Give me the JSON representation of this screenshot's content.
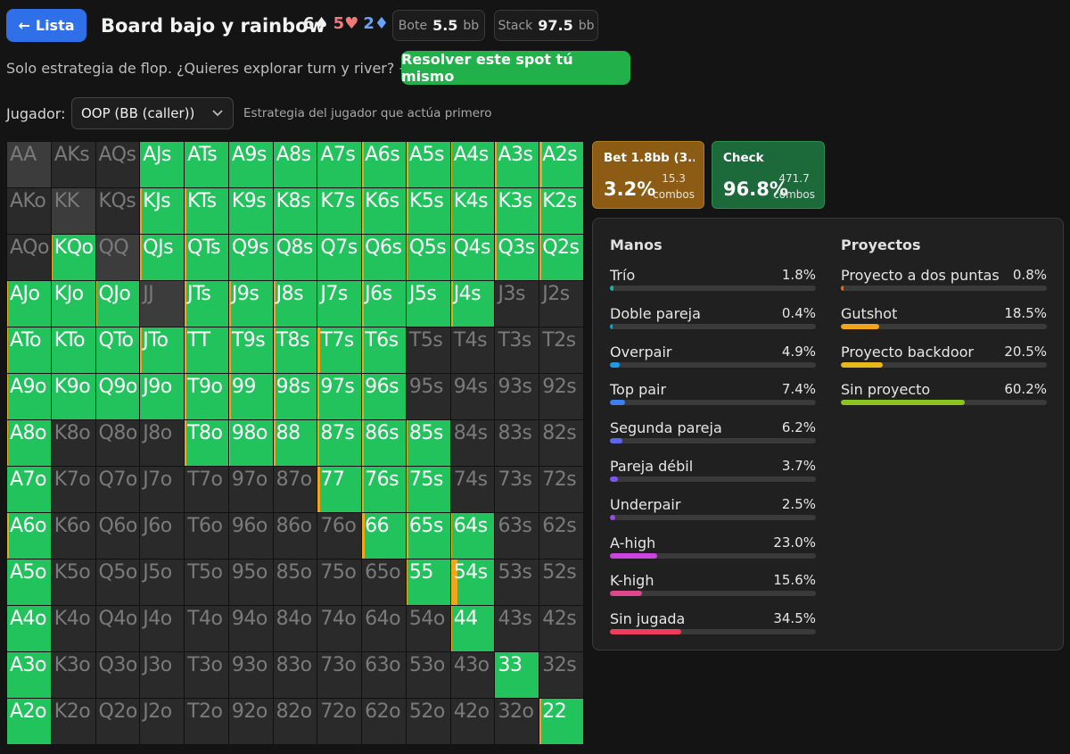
{
  "header": {
    "back_label": "Lista",
    "title": "Board bajo y rainbow",
    "board": [
      {
        "rank": "6",
        "suit": "♠",
        "cls": "card-s"
      },
      {
        "rank": "5",
        "suit": "♥",
        "cls": "card-h"
      },
      {
        "rank": "2",
        "suit": "♦",
        "cls": "card-d"
      }
    ],
    "pot_label": "Bote",
    "pot_value": "5.5",
    "pot_unit": "bb",
    "stack_label": "Stack",
    "stack_value": "97.5",
    "stack_unit": "bb"
  },
  "info_text": "Solo estrategia de flop. ¿Quieres explorar turn y river? →",
  "solve_button": "Resolver este spot tú mismo",
  "player": {
    "label": "Jugador:",
    "selected": "OOP (BB (caller))",
    "description": "Estrategia del jugador que actúa primero"
  },
  "actions": [
    {
      "name": "Bet 1.8bb (3...",
      "pct": "3.2%",
      "combos_value": "15.3",
      "combos_label": "combos",
      "color": "#8c5c15"
    },
    {
      "name": "Check",
      "pct": "96.8%",
      "combos_value": "471.7",
      "combos_label": "combos",
      "color": "#1c6a3a"
    }
  ],
  "matrix": {
    "colors": {
      "check": "#22c35d",
      "bet": "#f1a51d",
      "empty": "#2a2a2a"
    },
    "rows": [
      [
        [
          "AA",
          -1
        ],
        [
          "AKs",
          -1
        ],
        [
          "AQs",
          -1
        ],
        [
          "AJs",
          0
        ],
        [
          "ATs",
          0
        ],
        [
          "A9s",
          0
        ],
        [
          "A8s",
          0
        ],
        [
          "A7s",
          0
        ],
        [
          "A6s",
          3
        ],
        [
          "A5s",
          4
        ],
        [
          "A4s",
          3
        ],
        [
          "A3s",
          3
        ],
        [
          "A2s",
          5
        ]
      ],
      [
        [
          "AKo",
          -1
        ],
        [
          "KK",
          -1
        ],
        [
          "KQs",
          -1
        ],
        [
          "KJs",
          3
        ],
        [
          "KTs",
          3
        ],
        [
          "K9s",
          0
        ],
        [
          "K8s",
          0
        ],
        [
          "K7s",
          0
        ],
        [
          "K6s",
          4
        ],
        [
          "K5s",
          4
        ],
        [
          "K4s",
          3
        ],
        [
          "K3s",
          3
        ],
        [
          "K2s",
          3
        ]
      ],
      [
        [
          "AQo",
          -1
        ],
        [
          "KQo",
          3
        ],
        [
          "QQ",
          -1
        ],
        [
          "QJs",
          3
        ],
        [
          "QTs",
          3
        ],
        [
          "Q9s",
          0
        ],
        [
          "Q8s",
          0
        ],
        [
          "Q7s",
          0
        ],
        [
          "Q6s",
          4
        ],
        [
          "Q5s",
          3
        ],
        [
          "Q4s",
          3
        ],
        [
          "Q3s",
          3
        ],
        [
          "Q2s",
          3
        ]
      ],
      [
        [
          "AJo",
          3
        ],
        [
          "KJo",
          0
        ],
        [
          "QJo",
          3
        ],
        [
          "JJ",
          -1
        ],
        [
          "JTs",
          3
        ],
        [
          "J9s",
          5
        ],
        [
          "J8s",
          4
        ],
        [
          "J7s",
          0
        ],
        [
          "J6s",
          3
        ],
        [
          "J5s",
          0
        ],
        [
          "J4s",
          5
        ],
        [
          "J3s",
          -1
        ],
        [
          "J2s",
          -1
        ]
      ],
      [
        [
          "ATo",
          3
        ],
        [
          "KTo",
          0
        ],
        [
          "QTo",
          0
        ],
        [
          "JTo",
          3
        ],
        [
          "TT",
          3
        ],
        [
          "T9s",
          5
        ],
        [
          "T8s",
          5
        ],
        [
          "T7s",
          5
        ],
        [
          "T6s",
          3
        ],
        [
          "T5s",
          -1
        ],
        [
          "T4s",
          -1
        ],
        [
          "T3s",
          -1
        ],
        [
          "T2s",
          -1
        ]
      ],
      [
        [
          "A9o",
          3
        ],
        [
          "K9o",
          0
        ],
        [
          "Q9o",
          0
        ],
        [
          "J9o",
          0
        ],
        [
          "T9o",
          3
        ],
        [
          "99",
          5
        ],
        [
          "98s",
          4
        ],
        [
          "97s",
          3
        ],
        [
          "96s",
          3
        ],
        [
          "95s",
          -1
        ],
        [
          "94s",
          -1
        ],
        [
          "93s",
          -1
        ],
        [
          "92s",
          -1
        ]
      ],
      [
        [
          "A8o",
          3
        ],
        [
          "K8o",
          -1
        ],
        [
          "Q8o",
          -1
        ],
        [
          "J8o",
          -1
        ],
        [
          "T8o",
          3
        ],
        [
          "98o",
          3
        ],
        [
          "88",
          4
        ],
        [
          "87s",
          3
        ],
        [
          "86s",
          3
        ],
        [
          "85s",
          3
        ],
        [
          "84s",
          -1
        ],
        [
          "83s",
          -1
        ],
        [
          "82s",
          -1
        ]
      ],
      [
        [
          "A7o",
          0
        ],
        [
          "K7o",
          -1
        ],
        [
          "Q7o",
          -1
        ],
        [
          "J7o",
          -1
        ],
        [
          "T7o",
          -1
        ],
        [
          "97o",
          -1
        ],
        [
          "87o",
          -1
        ],
        [
          "77",
          5
        ],
        [
          "76s",
          4
        ],
        [
          "75s",
          3
        ],
        [
          "74s",
          -1
        ],
        [
          "73s",
          -1
        ],
        [
          "72s",
          -1
        ]
      ],
      [
        [
          "A6o",
          5
        ],
        [
          "K6o",
          -1
        ],
        [
          "Q6o",
          -1
        ],
        [
          "J6o",
          -1
        ],
        [
          "T6o",
          -1
        ],
        [
          "96o",
          -1
        ],
        [
          "86o",
          -1
        ],
        [
          "76o",
          -1
        ],
        [
          "66",
          5
        ],
        [
          "65s",
          5
        ],
        [
          "64s",
          3
        ],
        [
          "63s",
          -1
        ],
        [
          "62s",
          -1
        ]
      ],
      [
        [
          "A5o",
          0
        ],
        [
          "K5o",
          -1
        ],
        [
          "Q5o",
          -1
        ],
        [
          "J5o",
          -1
        ],
        [
          "T5o",
          -1
        ],
        [
          "95o",
          -1
        ],
        [
          "85o",
          -1
        ],
        [
          "75o",
          -1
        ],
        [
          "65o",
          -1
        ],
        [
          "55",
          3
        ],
        [
          "54s",
          15
        ],
        [
          "53s",
          -1
        ],
        [
          "52s",
          -1
        ]
      ],
      [
        [
          "A4o",
          0
        ],
        [
          "K4o",
          -1
        ],
        [
          "Q4o",
          -1
        ],
        [
          "J4o",
          -1
        ],
        [
          "T4o",
          -1
        ],
        [
          "94o",
          -1
        ],
        [
          "84o",
          -1
        ],
        [
          "74o",
          -1
        ],
        [
          "64o",
          -1
        ],
        [
          "54o",
          -1
        ],
        [
          "44",
          3
        ],
        [
          "43s",
          -1
        ],
        [
          "42s",
          -1
        ]
      ],
      [
        [
          "A3o",
          0
        ],
        [
          "K3o",
          -1
        ],
        [
          "Q3o",
          -1
        ],
        [
          "J3o",
          -1
        ],
        [
          "T3o",
          -1
        ],
        [
          "93o",
          -1
        ],
        [
          "83o",
          -1
        ],
        [
          "73o",
          -1
        ],
        [
          "63o",
          -1
        ],
        [
          "53o",
          -1
        ],
        [
          "43o",
          -1
        ],
        [
          "33",
          0
        ],
        [
          "32s",
          -1
        ]
      ],
      [
        [
          "A2o",
          0
        ],
        [
          "K2o",
          -1
        ],
        [
          "Q2o",
          -1
        ],
        [
          "J2o",
          -1
        ],
        [
          "T2o",
          -1
        ],
        [
          "92o",
          -1
        ],
        [
          "82o",
          -1
        ],
        [
          "72o",
          -1
        ],
        [
          "62o",
          -1
        ],
        [
          "52o",
          -1
        ],
        [
          "42o",
          -1
        ],
        [
          "32o",
          -1
        ],
        [
          "22",
          4
        ]
      ]
    ]
  },
  "stats": {
    "manos_title": "Manos",
    "proyectos_title": "Proyectos",
    "manos": [
      {
        "name": "Trío",
        "pct": "1.8%",
        "value": 1.8,
        "color": "#17b3a3"
      },
      {
        "name": "Doble pareja",
        "pct": "0.4%",
        "value": 0.4,
        "color": "#14a3c7"
      },
      {
        "name": "Overpair",
        "pct": "4.9%",
        "value": 4.9,
        "color": "#1e9be6"
      },
      {
        "name": "Top pair",
        "pct": "7.4%",
        "value": 7.4,
        "color": "#3d7ef0"
      },
      {
        "name": "Segunda pareja",
        "pct": "6.2%",
        "value": 6.2,
        "color": "#5b66f0"
      },
      {
        "name": "Pareja débil",
        "pct": "3.7%",
        "value": 3.7,
        "color": "#7a55ee"
      },
      {
        "name": "Underpair",
        "pct": "2.5%",
        "value": 2.5,
        "color": "#9a4ae8"
      },
      {
        "name": "A-high",
        "pct": "23.0%",
        "value": 23.0,
        "color": "#cc44e0"
      },
      {
        "name": "K-high",
        "pct": "15.6%",
        "value": 15.6,
        "color": "#e0468e"
      },
      {
        "name": "Sin jugada",
        "pct": "34.5%",
        "value": 34.5,
        "color": "#ee3d5a"
      }
    ],
    "proyectos": [
      {
        "name": "Proyecto a dos puntas",
        "pct": "0.8%",
        "value": 0.8,
        "color": "#f06a1a"
      },
      {
        "name": "Gutshot",
        "pct": "18.5%",
        "value": 18.5,
        "color": "#f0a51a"
      },
      {
        "name": "Proyecto backdoor",
        "pct": "20.5%",
        "value": 20.5,
        "color": "#e8b81a"
      },
      {
        "name": "Sin proyecto",
        "pct": "60.2%",
        "value": 60.2,
        "color": "#8ac420"
      }
    ]
  }
}
